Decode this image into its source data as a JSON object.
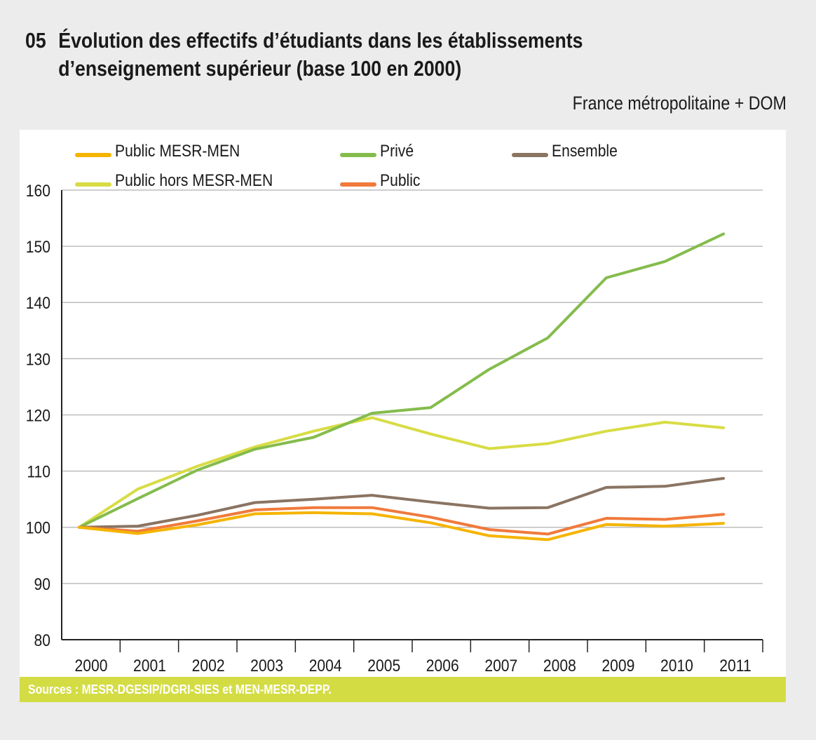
{
  "header": {
    "number": "05",
    "title_line1": "Évolution des effectifs d’étudiants dans les établissements",
    "title_line2": "d’enseignement supérieur (base 100 en 2000)",
    "subtitle": "France métropolitaine + DOM"
  },
  "footer": {
    "sources": "Sources : MESR-DGESIP/DGRI-SIES et MEN-MESR-DEPP."
  },
  "chart_data": {
    "type": "line",
    "title": "Évolution des effectifs d’étudiants dans les établissements d’enseignement supérieur (base 100 en 2000)",
    "xlabel": "",
    "ylabel": "",
    "x": [
      "2000",
      "2001",
      "2002",
      "2003",
      "2004",
      "2005",
      "2006",
      "2007",
      "2008",
      "2009",
      "2010",
      "2011"
    ],
    "ylim": [
      80,
      160
    ],
    "yticks": [
      80,
      90,
      100,
      110,
      120,
      130,
      140,
      150,
      160
    ],
    "grid": true,
    "legend_position": "top",
    "series": [
      {
        "name": "Public MESR-MEN",
        "color": "#f5b400",
        "values": [
          100,
          98.9,
          100.4,
          102.4,
          102.6,
          102.4,
          100.8,
          98.5,
          97.8,
          100.5,
          100.2,
          100.7
        ]
      },
      {
        "name": "Privé",
        "color": "#84bc4c",
        "values": [
          100,
          105.1,
          110.1,
          113.9,
          116.0,
          120.3,
          121.3,
          128.1,
          133.7,
          144.4,
          147.3,
          152.2
        ]
      },
      {
        "name": "Ensemble",
        "color": "#8a7462",
        "values": [
          100,
          100.2,
          102.1,
          104.4,
          105.0,
          105.7,
          104.5,
          103.4,
          103.5,
          107.1,
          107.3,
          108.7
        ]
      },
      {
        "name": "Public hors MESR-MEN",
        "color": "#d8dc44",
        "values": [
          100,
          106.8,
          110.8,
          114.3,
          117.1,
          119.5,
          116.6,
          114.0,
          114.9,
          117.1,
          118.7,
          117.7
        ]
      },
      {
        "name": "Public",
        "color": "#f07a3c",
        "values": [
          100,
          99.3,
          101.1,
          103.1,
          103.5,
          103.5,
          101.8,
          99.6,
          98.8,
          101.6,
          101.4,
          102.3
        ]
      }
    ]
  }
}
